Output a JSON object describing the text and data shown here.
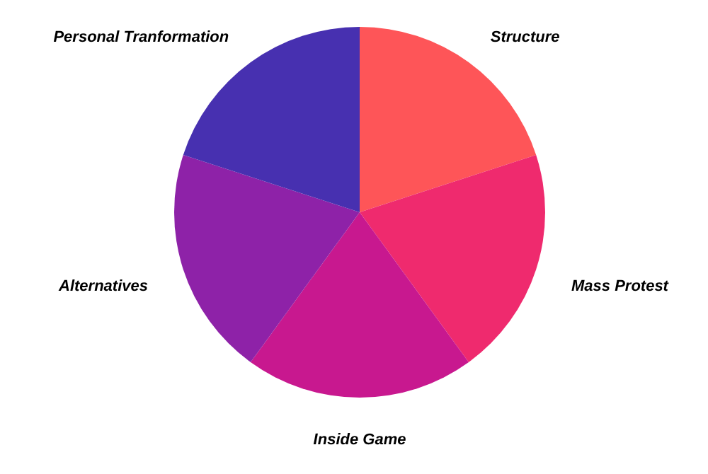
{
  "chart_data": {
    "type": "pie",
    "categories": [
      "Structure",
      "Mass Protest",
      "Inside Game",
      "Alternatives",
      "Personal Tranformation"
    ],
    "values": [
      20,
      20,
      20,
      20,
      20
    ],
    "colors": [
      "#fe5558",
      "#ef2a6e",
      "#c8188f",
      "#8e22a8",
      "#4730b0"
    ]
  }
}
